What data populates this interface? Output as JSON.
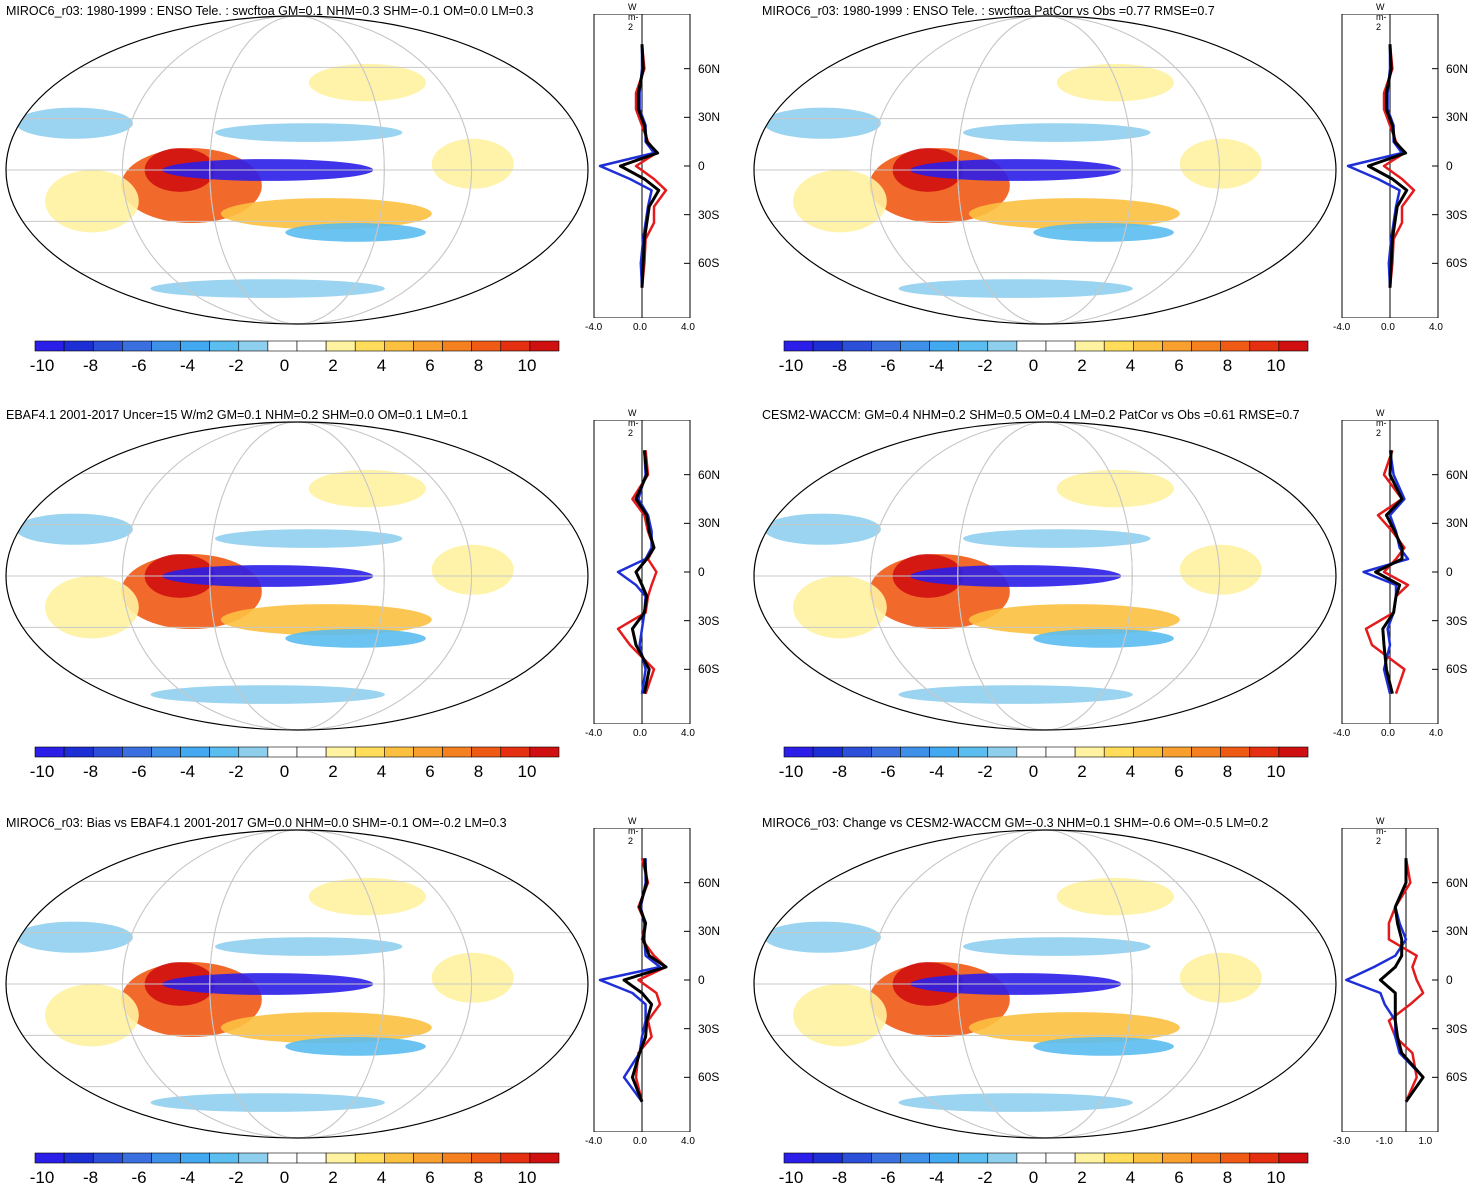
{
  "colorbar": {
    "ticks": [
      "-10",
      "-8",
      "-6",
      "-4",
      "-2",
      "0",
      "2",
      "4",
      "6",
      "8",
      "10"
    ],
    "colors": [
      "#2b1ee8",
      "#1d2fd4",
      "#2b4fd8",
      "#3a6fe0",
      "#3d8fe8",
      "#42a8f0",
      "#5bbdf0",
      "#8fcfee",
      "#ffffff",
      "#ffffff",
      "#fff2a0",
      "#ffdc5a",
      "#fcc040",
      "#f7a030",
      "#f58020",
      "#ef5a14",
      "#e43010",
      "#d01010"
    ]
  },
  "colors": {
    "model": "#e41a1c",
    "obs": "#1f2fd8",
    "mean": "#000000"
  },
  "chart_data": [
    {
      "type": "map",
      "title": "MIROC6_r03: 1980-1999 : ENSO Tele. : swcftoa GM=0.1 NHM=0.3 SHM=-0.1 OM=0.0 LM=0.3",
      "zonal": {
        "units": "W m-2",
        "x_ticks": [
          "-4.0",
          "0.0",
          "4.0"
        ],
        "xlim": [
          -4,
          4
        ],
        "lat_labels": [
          "60N",
          "30N",
          "0",
          "30S",
          "60S"
        ],
        "lats": [
          75,
          60,
          45,
          35,
          25,
          15,
          8,
          0,
          -8,
          -15,
          -25,
          -35,
          -45,
          -60,
          -75
        ],
        "red": [
          0,
          0.2,
          -0.5,
          -0.5,
          0,
          0.5,
          1.2,
          -0.5,
          1.0,
          2.0,
          1.0,
          1.0,
          0.3,
          0.2,
          0.0
        ],
        "blue": [
          0,
          0.0,
          -0.2,
          -0.2,
          0.3,
          0.3,
          1.0,
          -3.5,
          -1.0,
          0.8,
          0.5,
          0.3,
          0.1,
          -0.1,
          0.0
        ],
        "black": [
          0,
          0.1,
          -0.3,
          -0.3,
          0.2,
          0.4,
          1.3,
          -1.8,
          0.2,
          1.4,
          0.6,
          0.4,
          0.2,
          0.1,
          0.0
        ]
      }
    },
    {
      "type": "map",
      "title": "MIROC6_r03: 1980-1999 : ENSO Tele. : swcftoa PatCor vs Obs =0.77 RMSE=0.7",
      "zonal": {
        "units": "W m-2",
        "x_ticks": [
          "-4.0",
          "0.0",
          "4.0"
        ],
        "xlim": [
          -4,
          4
        ],
        "lat_labels": [
          "60N",
          "30N",
          "0",
          "30S",
          "60S"
        ],
        "lats": [
          75,
          60,
          45,
          35,
          25,
          15,
          8,
          0,
          -8,
          -15,
          -25,
          -35,
          -45,
          -60,
          -75
        ],
        "red": [
          0,
          0.2,
          -0.5,
          -0.5,
          0,
          0.5,
          1.2,
          -0.5,
          1.0,
          2.0,
          1.0,
          1.0,
          0.3,
          0.2,
          0.0
        ],
        "blue": [
          0,
          0.0,
          -0.2,
          -0.2,
          0.3,
          0.3,
          1.0,
          -3.5,
          -1.0,
          0.8,
          0.5,
          0.3,
          0.1,
          -0.1,
          0.0
        ],
        "black": [
          0,
          0.1,
          -0.3,
          -0.3,
          0.2,
          0.4,
          1.3,
          -1.8,
          0.2,
          1.4,
          0.6,
          0.4,
          0.2,
          0.1,
          0.0
        ]
      }
    },
    {
      "type": "map",
      "title": "EBAF4.1 2001-2017 Uncer=15 W/m2 GM=0.1 NHM=0.2 SHM=0.0 OM=0.1 LM=0.1",
      "zonal": {
        "units": "W m-2",
        "x_ticks": [
          "-4.0",
          "0.0",
          "4.0"
        ],
        "xlim": [
          -4,
          4
        ],
        "lat_labels": [
          "60N",
          "30N",
          "0",
          "30S",
          "60S"
        ],
        "lats": [
          75,
          60,
          45,
          35,
          25,
          15,
          8,
          0,
          -8,
          -15,
          -25,
          -35,
          -45,
          -60,
          -75
        ],
        "red": [
          0.3,
          0.5,
          -0.8,
          0.2,
          0.5,
          1.0,
          0.5,
          1.2,
          0.8,
          0.5,
          0.3,
          -2.0,
          -1.0,
          1.0,
          0.3
        ],
        "blue": [
          0.2,
          0.3,
          -0.3,
          0.5,
          0.8,
          0.8,
          0.3,
          -2.0,
          -0.5,
          0.3,
          0.2,
          0.0,
          -0.2,
          0.3,
          0.0
        ],
        "black": [
          0.2,
          0.4,
          -0.5,
          0.4,
          0.6,
          1.0,
          0.4,
          -0.5,
          0.0,
          0.4,
          0.2,
          -0.8,
          -0.5,
          0.6,
          0.2
        ]
      }
    },
    {
      "type": "map",
      "title": "CESM2-WACCM: GM=0.4 NHM=0.2 SHM=0.5 OM=0.4 LM=0.2 PatCor vs Obs =0.61 RMSE=0.7",
      "zonal": {
        "units": "W m-2",
        "x_ticks": [
          "-4.0",
          "0.0",
          "4.0"
        ],
        "xlim": [
          -4,
          4
        ],
        "lat_labels": [
          "60N",
          "30N",
          "0",
          "30S",
          "60S"
        ],
        "lats": [
          75,
          60,
          45,
          35,
          25,
          15,
          8,
          0,
          -8,
          -15,
          -25,
          -35,
          -45,
          -60,
          -75
        ],
        "red": [
          0.2,
          -0.5,
          1.0,
          -1.0,
          0.2,
          1.2,
          0.5,
          -0.5,
          1.5,
          0.5,
          0.3,
          -2.0,
          -1.5,
          1.2,
          0.5
        ],
        "blue": [
          0.0,
          0.3,
          1.2,
          0.0,
          0.5,
          0.8,
          1.5,
          -2.2,
          0.5,
          0.5,
          0.3,
          -0.2,
          0.0,
          -0.5,
          0.0
        ],
        "black": [
          0.1,
          0.0,
          1.0,
          -0.3,
          0.4,
          1.0,
          1.0,
          -1.2,
          0.8,
          0.5,
          0.3,
          -0.6,
          -0.5,
          -0.3,
          0.2
        ]
      }
    },
    {
      "type": "map",
      "title": "MIROC6_r03: Bias vs EBAF4.1 2001-2017 GM=0.0 NHM=0.0 SHM=-0.1 OM=-0.2 LM=0.3",
      "zonal": {
        "units": "W m-2",
        "x_ticks": [
          "-4.0",
          "0.0",
          "4.0"
        ],
        "xlim": [
          -4,
          4
        ],
        "lat_labels": [
          "60N",
          "30N",
          "0",
          "30S",
          "60S"
        ],
        "lats": [
          75,
          60,
          45,
          35,
          25,
          15,
          8,
          0,
          -8,
          -15,
          -25,
          -35,
          -45,
          -60,
          -75
        ],
        "red": [
          0.0,
          0.5,
          -0.3,
          0.3,
          0.0,
          1.0,
          2.0,
          -0.3,
          1.2,
          1.5,
          0.5,
          0.8,
          -0.3,
          -0.5,
          0.0
        ],
        "blue": [
          0.3,
          0.3,
          -0.1,
          0.2,
          0.2,
          0.3,
          1.5,
          -3.5,
          -0.8,
          0.3,
          0.3,
          0.0,
          -0.2,
          -1.5,
          0.0
        ],
        "black": [
          0.2,
          0.4,
          -0.2,
          0.3,
          0.1,
          0.6,
          2.0,
          -1.5,
          0.0,
          0.8,
          0.4,
          0.3,
          -0.2,
          -0.8,
          0.0
        ]
      }
    },
    {
      "type": "map",
      "title": "MIROC6_r03: Change vs CESM2-WACCM GM=-0.3 NHM=0.1 SHM=-0.6 OM=-0.5 LM=0.2",
      "zonal": {
        "units": "W m-2",
        "x_ticks": [
          "-3.0",
          "-1.0",
          "1.0"
        ],
        "xlim": [
          -3,
          1.5
        ],
        "lat_labels": [
          "60N",
          "30N",
          "0",
          "30S",
          "60S"
        ],
        "lats": [
          75,
          60,
          45,
          35,
          25,
          15,
          8,
          0,
          -8,
          -15,
          -25,
          -35,
          -45,
          -60,
          -75
        ],
        "red": [
          0.0,
          0.2,
          -0.5,
          -0.8,
          -0.8,
          0.5,
          0.3,
          0.5,
          0.8,
          0.2,
          -0.8,
          -0.5,
          0.3,
          0.5,
          0.0
        ],
        "blue": [
          0.0,
          0.0,
          -0.5,
          -0.3,
          0.0,
          -0.5,
          -1.5,
          -2.8,
          -1.2,
          -1.0,
          -0.5,
          -0.5,
          -0.3,
          0.8,
          0.0
        ],
        "black": [
          0.0,
          0.0,
          -0.5,
          -0.4,
          -0.2,
          -0.2,
          -0.5,
          -1.2,
          -0.5,
          -0.5,
          -0.5,
          -0.4,
          -0.2,
          0.8,
          0.0
        ]
      }
    }
  ]
}
